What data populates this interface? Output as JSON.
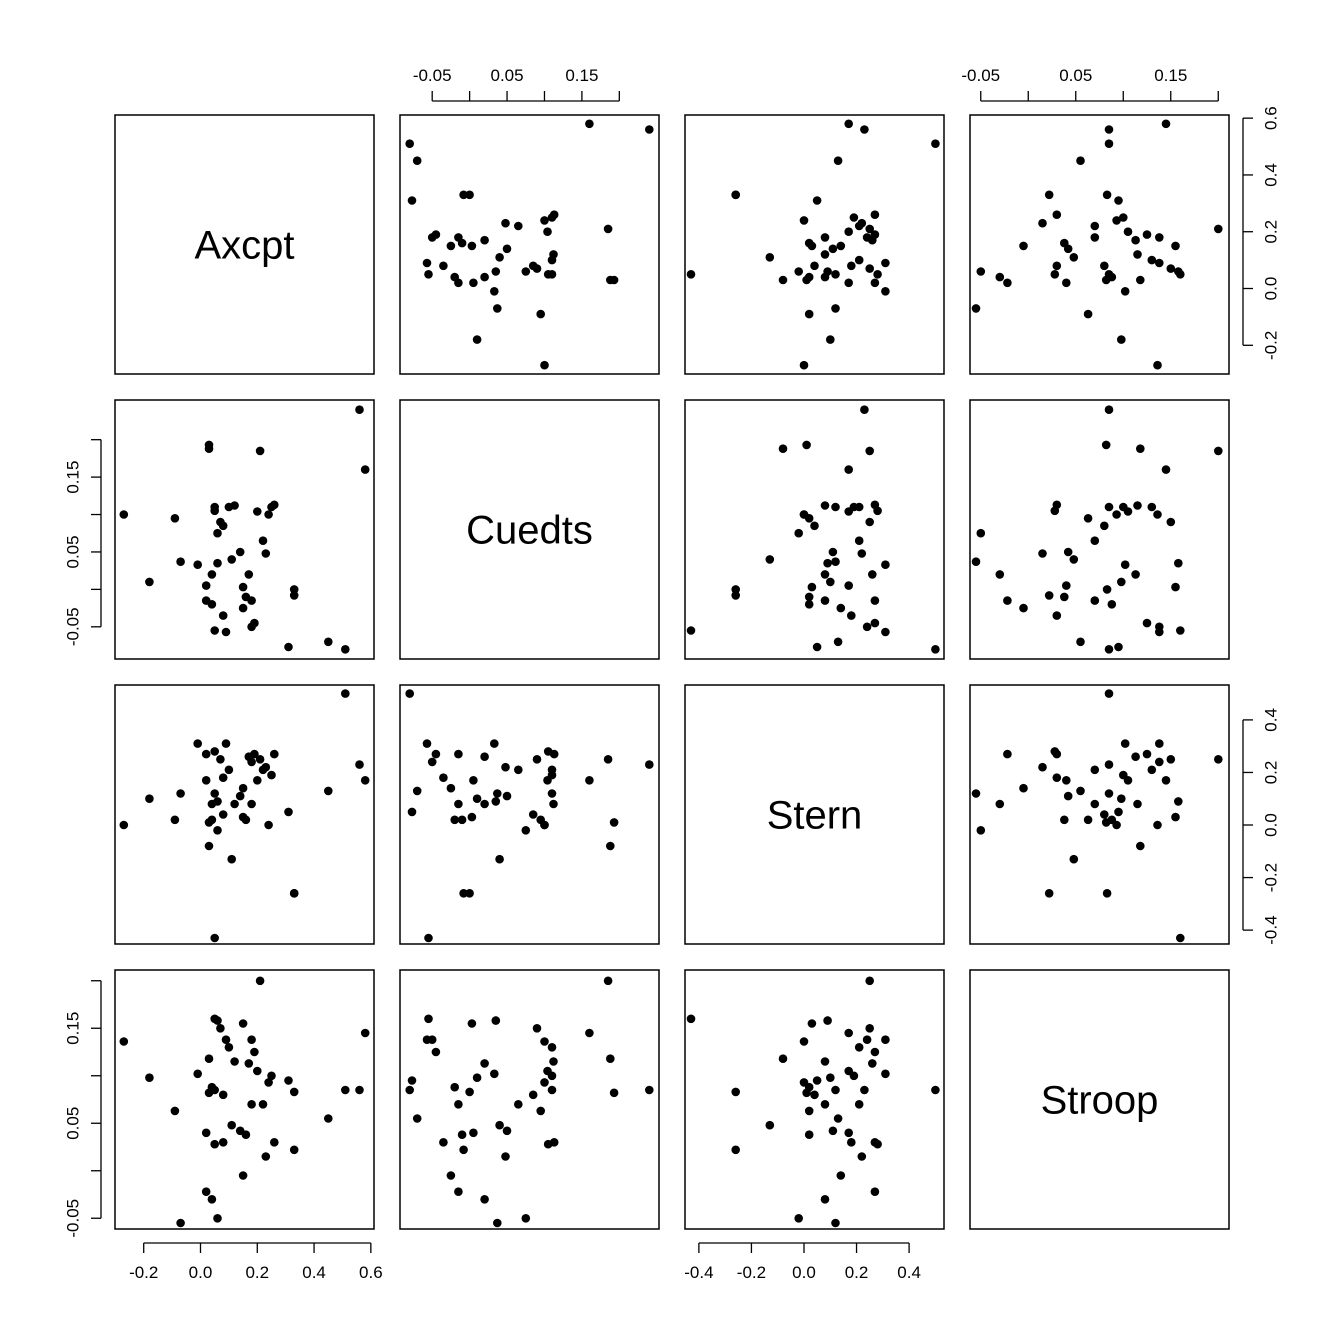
{
  "chart_data": {
    "type": "scatter",
    "matrix": "pairs",
    "variables": [
      "Axcpt",
      "Cuedts",
      "Stern",
      "Stroop"
    ],
    "ranges": {
      "Axcpt": [
        -0.28,
        0.59
      ],
      "Cuedts": [
        -0.085,
        0.245
      ],
      "Stern": [
        -0.43,
        0.51
      ],
      "Stroop": [
        -0.055,
        0.205
      ]
    },
    "ticks": {
      "Axcpt": [
        -0.2,
        0.0,
        0.2,
        0.4,
        0.6
      ],
      "Cuedts": [
        -0.05,
        0.0,
        0.05,
        0.1,
        0.15,
        0.2
      ],
      "Stern": [
        -0.4,
        -0.2,
        0.0,
        0.2,
        0.4
      ],
      "Stroop": [
        -0.05,
        0.0,
        0.05,
        0.1,
        0.15,
        0.2
      ]
    },
    "tick_labels": {
      "Axcpt": [
        "-0.2",
        "0.0",
        "0.2",
        "0.4",
        "0.6"
      ],
      "Cuedts": [
        "-0.05",
        "",
        "0.05",
        "",
        "0.15",
        ""
      ],
      "Stern": [
        "-0.4",
        "-0.2",
        "0.0",
        "0.2",
        "0.4"
      ],
      "Stroop": [
        "-0.05",
        "",
        "0.05",
        "",
        "0.15",
        ""
      ]
    },
    "axes": {
      "top": [
        "Cuedts",
        "Stroop"
      ],
      "bottom": [
        "Axcpt",
        "Stern"
      ],
      "left": [
        "Cuedts",
        "Stroop"
      ],
      "right": [
        "Axcpt",
        "Stern"
      ]
    },
    "grid": false,
    "legend": "none",
    "point_color": "#000000",
    "observations": [
      {
        "Axcpt": 0.58,
        "Cuedts": 0.16,
        "Stern": 0.17,
        "Stroop": 0.145
      },
      {
        "Axcpt": 0.56,
        "Cuedts": 0.24,
        "Stern": 0.23,
        "Stroop": 0.085
      },
      {
        "Axcpt": 0.51,
        "Cuedts": -0.08,
        "Stern": 0.5,
        "Stroop": 0.085
      },
      {
        "Axcpt": 0.45,
        "Cuedts": -0.07,
        "Stern": 0.13,
        "Stroop": 0.055
      },
      {
        "Axcpt": 0.33,
        "Cuedts": 0.0,
        "Stern": -0.26,
        "Stroop": 0.083
      },
      {
        "Axcpt": 0.33,
        "Cuedts": -0.008,
        "Stern": -0.26,
        "Stroop": 0.022
      },
      {
        "Axcpt": 0.31,
        "Cuedts": -0.077,
        "Stern": 0.05,
        "Stroop": 0.095
      },
      {
        "Axcpt": 0.26,
        "Cuedts": 0.113,
        "Stern": 0.27,
        "Stroop": 0.03
      },
      {
        "Axcpt": 0.25,
        "Cuedts": 0.11,
        "Stern": 0.19,
        "Stroop": 0.1
      },
      {
        "Axcpt": 0.24,
        "Cuedts": 0.1,
        "Stern": 0.0,
        "Stroop": 0.093
      },
      {
        "Axcpt": 0.23,
        "Cuedts": 0.048,
        "Stern": 0.22,
        "Stroop": 0.015
      },
      {
        "Axcpt": 0.22,
        "Cuedts": 0.065,
        "Stern": 0.21,
        "Stroop": 0.07
      },
      {
        "Axcpt": 0.21,
        "Cuedts": 0.185,
        "Stern": 0.25,
        "Stroop": 0.2
      },
      {
        "Axcpt": 0.2,
        "Cuedts": 0.104,
        "Stern": 0.17,
        "Stroop": 0.105
      },
      {
        "Axcpt": 0.19,
        "Cuedts": -0.045,
        "Stern": 0.27,
        "Stroop": 0.125
      },
      {
        "Axcpt": 0.18,
        "Cuedts": -0.05,
        "Stern": 0.24,
        "Stroop": 0.138
      },
      {
        "Axcpt": 0.18,
        "Cuedts": -0.015,
        "Stern": 0.08,
        "Stroop": 0.07
      },
      {
        "Axcpt": 0.17,
        "Cuedts": 0.02,
        "Stern": 0.26,
        "Stroop": 0.113
      },
      {
        "Axcpt": 0.16,
        "Cuedts": -0.01,
        "Stern": 0.02,
        "Stroop": 0.038
      },
      {
        "Axcpt": 0.15,
        "Cuedts": 0.003,
        "Stern": 0.03,
        "Stroop": 0.155
      },
      {
        "Axcpt": 0.15,
        "Cuedts": -0.025,
        "Stern": 0.14,
        "Stroop": -0.005
      },
      {
        "Axcpt": 0.14,
        "Cuedts": 0.05,
        "Stern": 0.11,
        "Stroop": 0.042
      },
      {
        "Axcpt": 0.12,
        "Cuedts": 0.112,
        "Stern": 0.08,
        "Stroop": 0.115
      },
      {
        "Axcpt": 0.11,
        "Cuedts": 0.04,
        "Stern": -0.13,
        "Stroop": 0.048
      },
      {
        "Axcpt": 0.1,
        "Cuedts": 0.11,
        "Stern": 0.21,
        "Stroop": 0.13
      },
      {
        "Axcpt": 0.09,
        "Cuedts": -0.057,
        "Stern": 0.31,
        "Stroop": 0.138
      },
      {
        "Axcpt": 0.08,
        "Cuedts": 0.085,
        "Stern": 0.04,
        "Stroop": 0.08
      },
      {
        "Axcpt": 0.08,
        "Cuedts": -0.035,
        "Stern": 0.18,
        "Stroop": 0.03
      },
      {
        "Axcpt": 0.07,
        "Cuedts": 0.09,
        "Stern": 0.25,
        "Stroop": 0.15
      },
      {
        "Axcpt": 0.06,
        "Cuedts": 0.075,
        "Stern": -0.02,
        "Stroop": -0.05
      },
      {
        "Axcpt": 0.06,
        "Cuedts": 0.035,
        "Stern": 0.09,
        "Stroop": 0.158
      },
      {
        "Axcpt": 0.05,
        "Cuedts": 0.105,
        "Stern": 0.28,
        "Stroop": 0.028
      },
      {
        "Axcpt": 0.05,
        "Cuedts": -0.055,
        "Stern": -0.43,
        "Stroop": 0.16
      },
      {
        "Axcpt": 0.05,
        "Cuedts": 0.11,
        "Stern": 0.12,
        "Stroop": 0.085
      },
      {
        "Axcpt": 0.04,
        "Cuedts": -0.02,
        "Stern": 0.02,
        "Stroop": 0.088
      },
      {
        "Axcpt": 0.04,
        "Cuedts": 0.02,
        "Stern": 0.08,
        "Stroop": -0.03
      },
      {
        "Axcpt": 0.03,
        "Cuedts": 0.193,
        "Stern": 0.01,
        "Stroop": 0.082
      },
      {
        "Axcpt": 0.03,
        "Cuedts": 0.188,
        "Stern": -0.08,
        "Stroop": 0.118
      },
      {
        "Axcpt": 0.02,
        "Cuedts": -0.015,
        "Stern": 0.27,
        "Stroop": -0.022
      },
      {
        "Axcpt": 0.02,
        "Cuedts": 0.005,
        "Stern": 0.17,
        "Stroop": 0.04
      },
      {
        "Axcpt": -0.01,
        "Cuedts": 0.033,
        "Stern": 0.31,
        "Stroop": 0.102
      },
      {
        "Axcpt": -0.07,
        "Cuedts": 0.037,
        "Stern": 0.12,
        "Stroop": -0.055
      },
      {
        "Axcpt": -0.09,
        "Cuedts": 0.095,
        "Stern": 0.02,
        "Stroop": 0.063
      },
      {
        "Axcpt": -0.18,
        "Cuedts": 0.01,
        "Stern": 0.1,
        "Stroop": 0.098
      },
      {
        "Axcpt": -0.27,
        "Cuedts": 0.1,
        "Stern": 0.0,
        "Stroop": 0.136
      }
    ]
  }
}
